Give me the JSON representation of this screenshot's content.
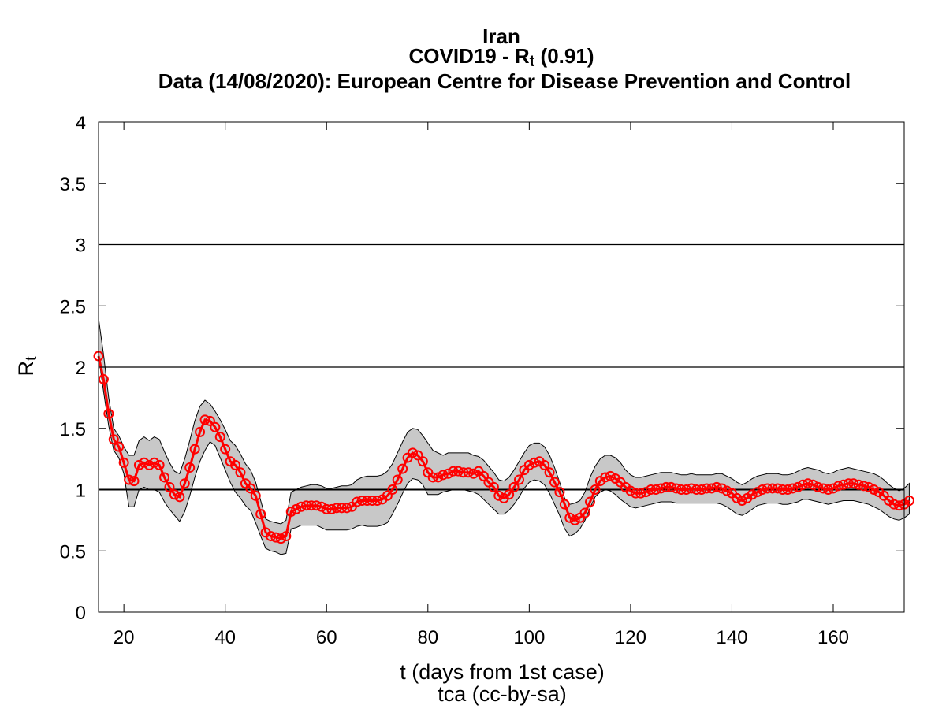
{
  "chart_data": {
    "type": "line",
    "title": {
      "line1": "Iran",
      "line2_prefix": "COVID19 - R",
      "line2_sub": "t",
      "line2_suffix": " (0.91)",
      "line3": "Data (14/08/2020): European Centre for Disease Prevention and Control"
    },
    "xlabel": "t (days from 1st case)",
    "credit": "tca (cc-by-sa)",
    "ylabel_main": "R",
    "ylabel_sub": "t",
    "xlim": [
      15,
      174
    ],
    "ylim": [
      0,
      4
    ],
    "xticks": [
      20,
      40,
      60,
      80,
      100,
      120,
      140,
      160
    ],
    "yticks": [
      0,
      0.5,
      1,
      1.5,
      2,
      2.5,
      3,
      3.5,
      4
    ],
    "ytick_labels": [
      "0",
      "0.5",
      "1",
      "1.5",
      "2",
      "2.5",
      "3",
      "3.5",
      "4"
    ],
    "reference_lines": [
      1,
      2,
      3
    ],
    "grid": false,
    "series": [
      {
        "x_start": 15,
        "x_step": 1,
        "values": [
          2.09,
          1.9,
          1.62,
          1.41,
          1.35,
          1.22,
          1.08,
          1.07,
          1.2,
          1.22,
          1.2,
          1.22,
          1.2,
          1.1,
          1.02,
          0.96,
          0.94,
          1.05,
          1.18,
          1.33,
          1.47,
          1.57,
          1.56,
          1.51,
          1.43,
          1.33,
          1.23,
          1.2,
          1.14,
          1.05,
          1.01,
          0.95,
          0.8,
          0.65,
          0.62,
          0.61,
          0.6,
          0.62,
          0.82,
          0.84,
          0.86,
          0.87,
          0.87,
          0.87,
          0.86,
          0.84,
          0.84,
          0.85,
          0.85,
          0.85,
          0.86,
          0.9,
          0.91,
          0.91,
          0.91,
          0.91,
          0.92,
          0.95,
          1.0,
          1.08,
          1.17,
          1.26,
          1.3,
          1.28,
          1.23,
          1.14,
          1.1,
          1.1,
          1.12,
          1.13,
          1.15,
          1.15,
          1.14,
          1.14,
          1.13,
          1.15,
          1.11,
          1.06,
          1.02,
          0.95,
          0.93,
          0.96,
          1.02,
          1.08,
          1.16,
          1.2,
          1.22,
          1.23,
          1.2,
          1.14,
          1.06,
          0.98,
          0.88,
          0.77,
          0.75,
          0.77,
          0.81,
          0.9,
          1.0,
          1.07,
          1.1,
          1.11,
          1.09,
          1.06,
          1.02,
          0.99,
          0.97,
          0.97,
          0.98,
          1.0,
          1.0,
          1.01,
          1.02,
          1.02,
          1.01,
          1.0,
          1.0,
          1.01,
          1.0,
          1.0,
          1.01,
          1.01,
          1.02,
          1.01,
          0.99,
          0.97,
          0.93,
          0.91,
          0.93,
          0.96,
          0.98,
          1.0,
          1.01,
          1.01,
          1.01,
          1.0,
          1.0,
          1.01,
          1.02,
          1.04,
          1.05,
          1.04,
          1.02,
          1.01,
          1.0,
          1.01,
          1.03,
          1.04,
          1.05,
          1.05,
          1.04,
          1.03,
          1.02,
          1.0,
          0.98,
          0.95,
          0.91,
          0.88,
          0.87,
          0.88,
          0.91
        ],
        "band_lower": [
          2.09,
          1.8,
          1.52,
          1.32,
          1.26,
          1.13,
          0.86,
          0.86,
          1.0,
          1.02,
          1.0,
          1.0,
          0.98,
          0.9,
          0.84,
          0.79,
          0.74,
          0.82,
          0.95,
          1.1,
          1.23,
          1.32,
          1.39,
          1.36,
          1.26,
          1.16,
          1.06,
          0.98,
          0.93,
          0.87,
          0.83,
          0.73,
          0.62,
          0.52,
          0.5,
          0.49,
          0.47,
          0.48,
          0.68,
          0.69,
          0.71,
          0.71,
          0.71,
          0.71,
          0.69,
          0.67,
          0.67,
          0.67,
          0.67,
          0.67,
          0.68,
          0.7,
          0.71,
          0.7,
          0.7,
          0.7,
          0.71,
          0.73,
          0.8,
          0.88,
          0.97,
          1.05,
          1.09,
          1.08,
          1.04,
          0.96,
          0.96,
          0.96,
          0.98,
          0.99,
          1.0,
          1.0,
          1.0,
          0.99,
          0.98,
          0.96,
          0.92,
          0.88,
          0.84,
          0.8,
          0.8,
          0.83,
          0.88,
          0.94,
          1.01,
          1.06,
          1.08,
          1.07,
          1.04,
          0.97,
          0.88,
          0.79,
          0.68,
          0.62,
          0.64,
          0.68,
          0.75,
          0.85,
          0.94,
          0.98,
          1.0,
          0.99,
          0.96,
          0.92,
          0.89,
          0.86,
          0.85,
          0.86,
          0.87,
          0.88,
          0.89,
          0.9,
          0.9,
          0.9,
          0.89,
          0.89,
          0.89,
          0.89,
          0.89,
          0.89,
          0.89,
          0.89,
          0.89,
          0.88,
          0.86,
          0.83,
          0.8,
          0.79,
          0.81,
          0.84,
          0.87,
          0.88,
          0.89,
          0.89,
          0.89,
          0.88,
          0.88,
          0.89,
          0.9,
          0.92,
          0.92,
          0.91,
          0.9,
          0.89,
          0.88,
          0.89,
          0.9,
          0.91,
          0.91,
          0.91,
          0.9,
          0.89,
          0.88,
          0.86,
          0.84,
          0.81,
          0.78,
          0.76,
          0.75,
          0.77,
          0.8
        ],
        "band_upper": [
          2.4,
          2.1,
          1.75,
          1.5,
          1.44,
          1.35,
          1.28,
          1.28,
          1.4,
          1.43,
          1.4,
          1.43,
          1.41,
          1.31,
          1.22,
          1.15,
          1.13,
          1.25,
          1.4,
          1.56,
          1.68,
          1.73,
          1.7,
          1.64,
          1.57,
          1.49,
          1.4,
          1.36,
          1.29,
          1.21,
          1.16,
          1.06,
          0.91,
          0.76,
          0.74,
          0.73,
          0.72,
          0.75,
          0.98,
          1.0,
          1.02,
          1.03,
          1.04,
          1.04,
          1.03,
          1.01,
          1.01,
          1.02,
          1.03,
          1.03,
          1.04,
          1.08,
          1.1,
          1.11,
          1.11,
          1.11,
          1.12,
          1.15,
          1.21,
          1.3,
          1.39,
          1.47,
          1.5,
          1.49,
          1.44,
          1.38,
          1.32,
          1.3,
          1.28,
          1.3,
          1.3,
          1.3,
          1.3,
          1.3,
          1.28,
          1.27,
          1.24,
          1.19,
          1.14,
          1.08,
          1.07,
          1.1,
          1.16,
          1.23,
          1.3,
          1.36,
          1.38,
          1.38,
          1.35,
          1.28,
          1.18,
          1.06,
          0.93,
          0.88,
          0.89,
          0.91,
          0.98,
          1.1,
          1.19,
          1.25,
          1.28,
          1.28,
          1.26,
          1.22,
          1.16,
          1.12,
          1.1,
          1.1,
          1.11,
          1.12,
          1.13,
          1.14,
          1.14,
          1.14,
          1.13,
          1.12,
          1.12,
          1.13,
          1.12,
          1.12,
          1.12,
          1.12,
          1.13,
          1.13,
          1.11,
          1.09,
          1.06,
          1.04,
          1.06,
          1.09,
          1.11,
          1.12,
          1.13,
          1.13,
          1.13,
          1.12,
          1.12,
          1.13,
          1.15,
          1.17,
          1.18,
          1.17,
          1.16,
          1.14,
          1.13,
          1.14,
          1.16,
          1.17,
          1.18,
          1.17,
          1.16,
          1.15,
          1.14,
          1.13,
          1.11,
          1.08,
          1.04,
          1.01,
          0.99,
          1.01,
          1.05
        ]
      }
    ],
    "colors": {
      "series": "#ff0000",
      "band_fill": "#c8c8c8",
      "band_edge": "#000000",
      "axis": "#000000",
      "reference": "#000000"
    }
  }
}
